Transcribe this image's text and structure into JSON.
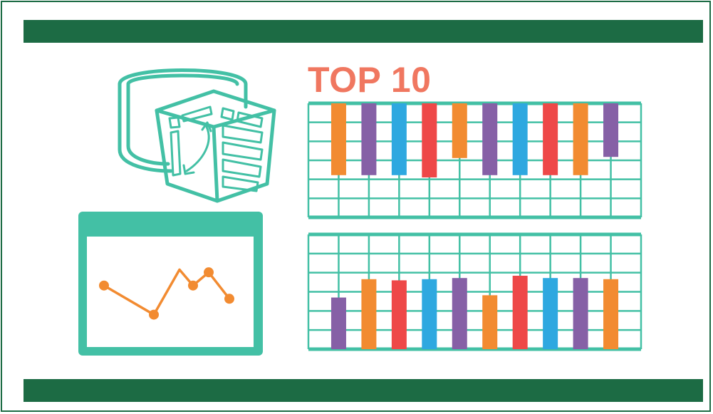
{
  "title": "TOP 10",
  "colors": {
    "band": "#1c6b44",
    "teal": "#43c0a5",
    "title": "#f07760",
    "line": "#f28b31",
    "orange": "#f28b31",
    "purple": "#8660a6",
    "blue": "#2ea8e0",
    "red": "#ee4848"
  },
  "icons": [
    "database-cube-icon",
    "line-chart-window-icon"
  ],
  "chart_data": [
    {
      "type": "bar",
      "orientation": "hanging",
      "series_colors": [
        "orange",
        "purple",
        "blue",
        "red",
        "orange",
        "purple",
        "blue",
        "red",
        "orange",
        "purple"
      ],
      "values": [
        6.3,
        6.3,
        6.3,
        6.5,
        4.8,
        6.3,
        6.3,
        6.3,
        6.3,
        4.7
      ],
      "ylim": [
        0,
        10
      ],
      "grid": true
    },
    {
      "type": "bar",
      "series_colors": [
        "purple",
        "orange",
        "red",
        "blue",
        "purple",
        "orange",
        "red",
        "blue",
        "purple",
        "orange"
      ],
      "values": [
        4.5,
        6.1,
        6.0,
        6.1,
        6.2,
        4.7,
        6.4,
        6.2,
        6.2,
        6.1
      ],
      "ylim": [
        0,
        10
      ],
      "grid": true
    },
    {
      "type": "line",
      "x": [
        1,
        2,
        3,
        4,
        5,
        6
      ],
      "y": [
        4.0,
        1.8,
        5.2,
        4.0,
        5.0,
        3.0
      ],
      "ylim": [
        0,
        7
      ]
    }
  ]
}
